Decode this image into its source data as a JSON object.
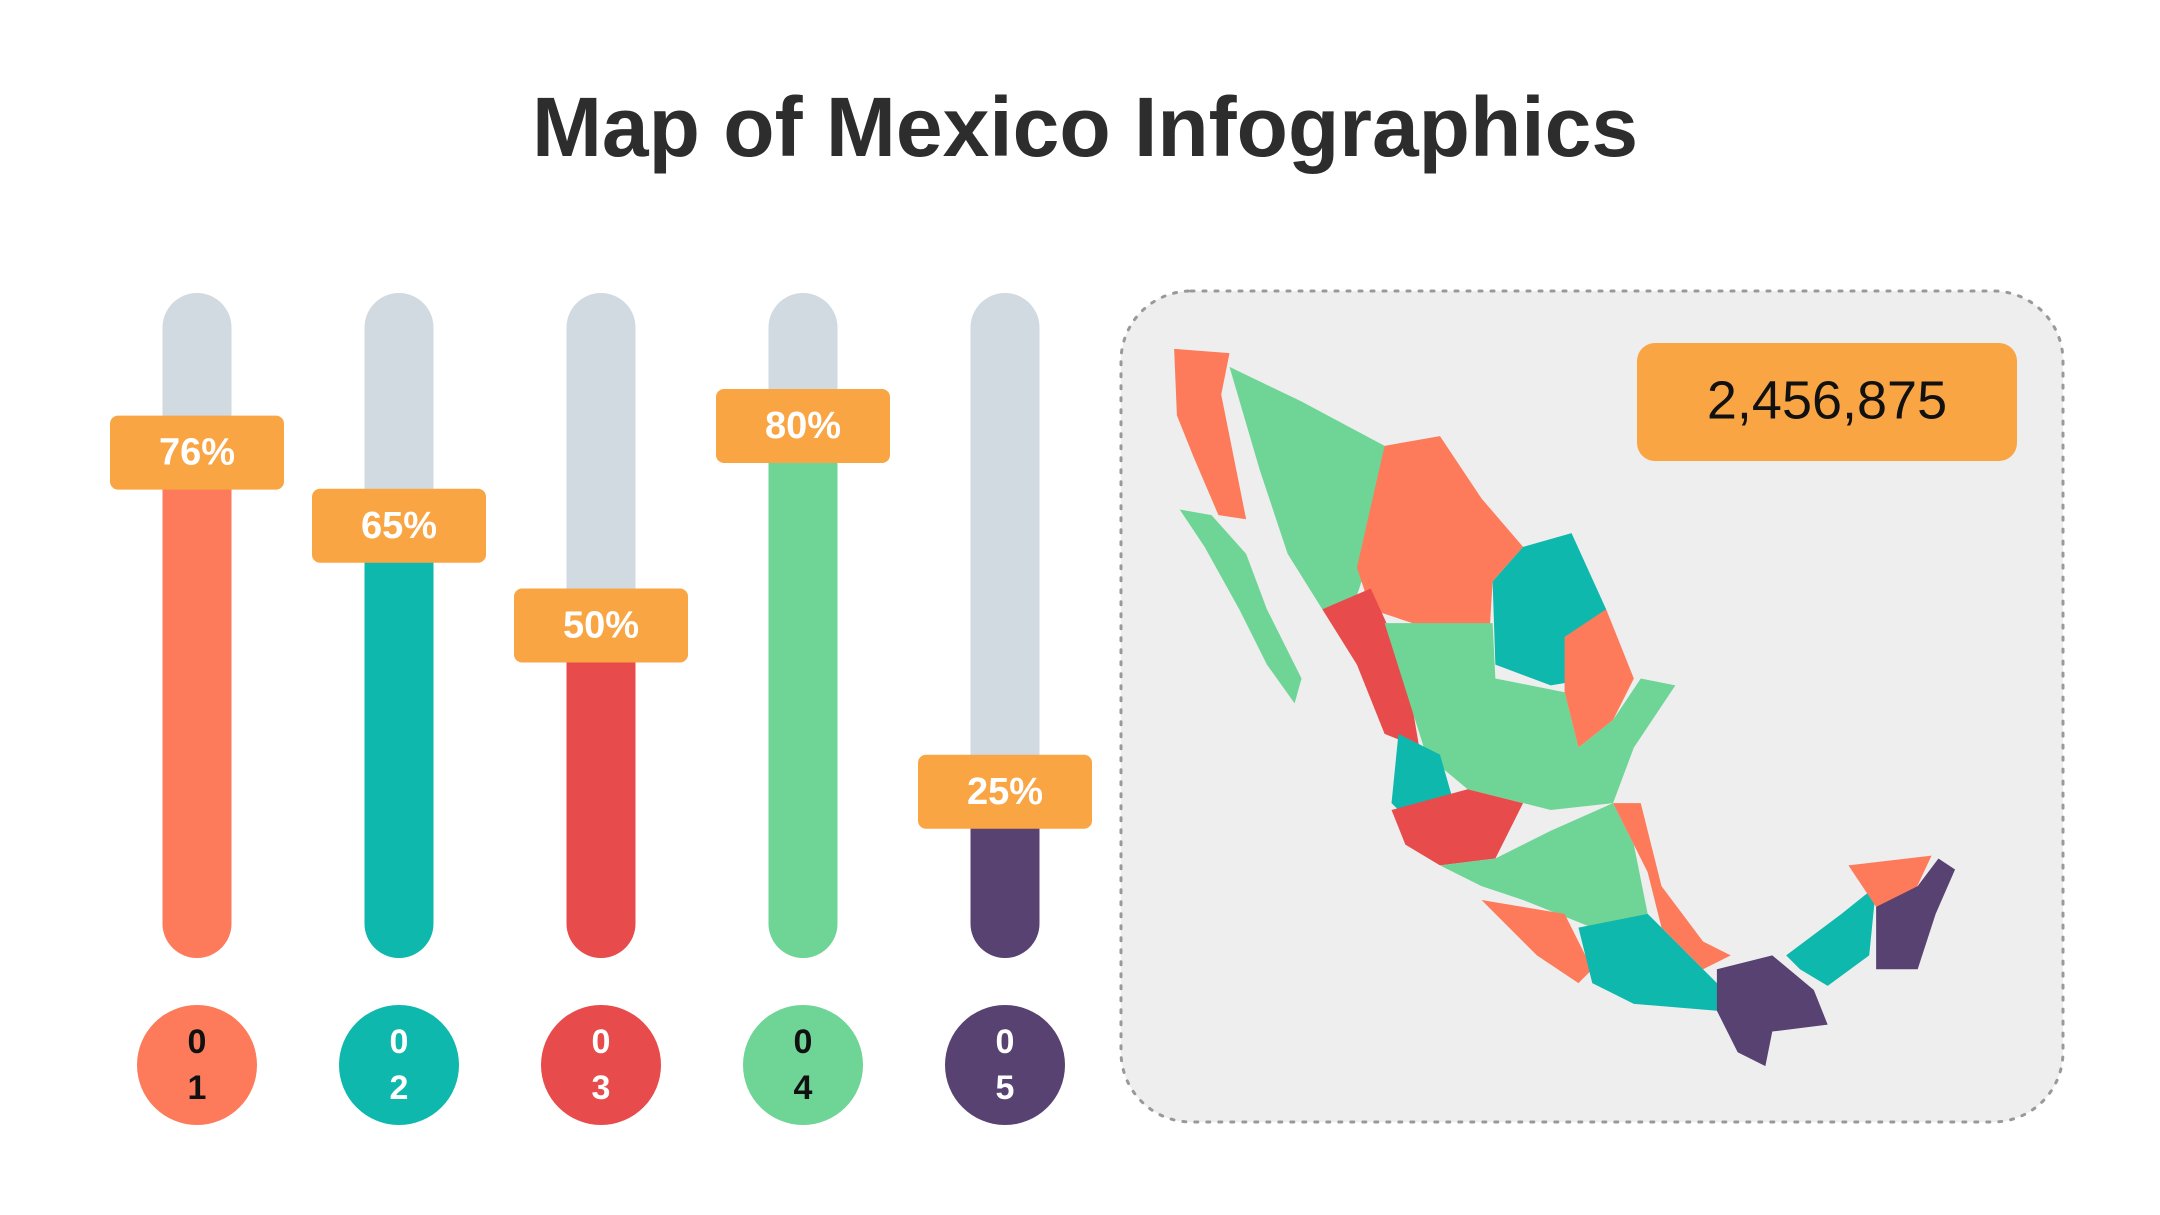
{
  "chart_data": {
    "type": "bar",
    "title": "Map of Mexico Infographics",
    "categories": [
      "01",
      "02",
      "03",
      "04",
      "05"
    ],
    "values": [
      76,
      65,
      50,
      80,
      25
    ],
    "value_labels": [
      "76%",
      "65%",
      "50%",
      "80%",
      "25%"
    ],
    "colors": [
      "#fd7b5a",
      "#0eb8ad",
      "#e84b4b",
      "#6fd596",
      "#574271"
    ],
    "label_color": "#f9a544",
    "ylim": [
      0,
      100
    ],
    "annotation": "2,456,875"
  }
}
